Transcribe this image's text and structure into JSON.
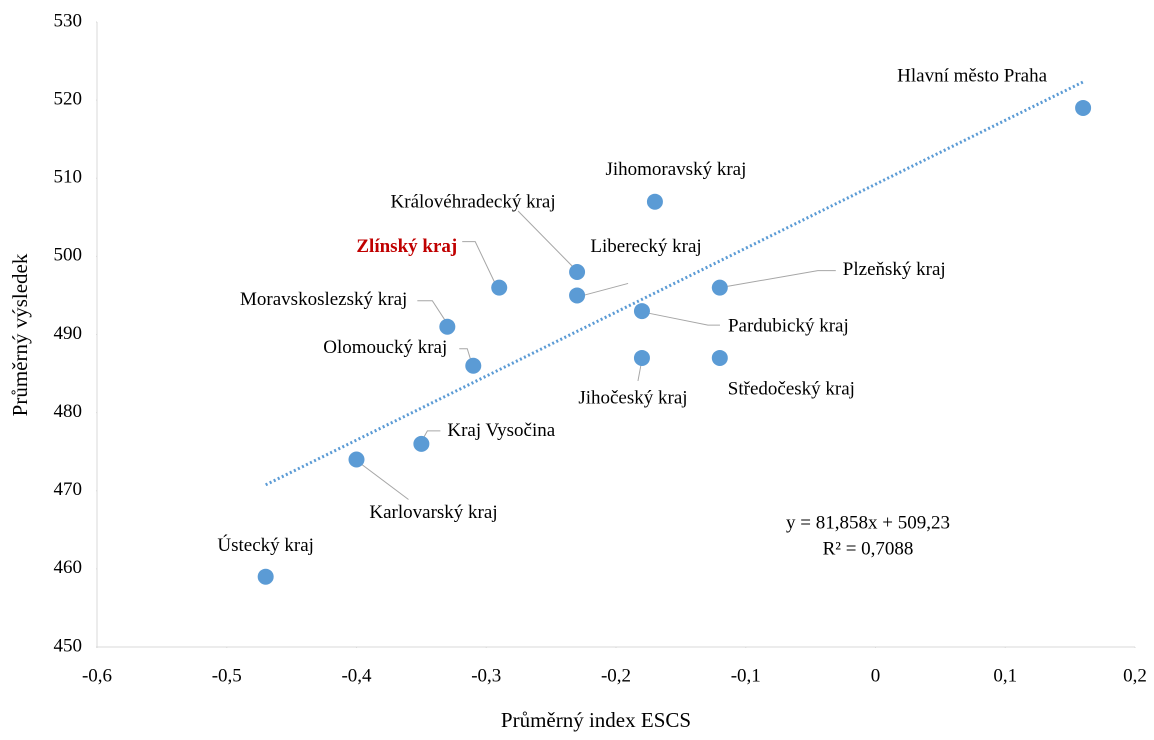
{
  "chart_data": {
    "type": "scatter",
    "xlabel": "Průměrný index ESCS",
    "ylabel": "Průměrný výsledek",
    "labels": [
      "Hlavní město Praha",
      "Jihomoravský kraj",
      "Královéhradecký kraj",
      "Liberecký kraj",
      "Zlínský kraj",
      "Moravskoslezský kraj",
      "Olomoucký kraj",
      "Kraj Vysočina",
      "Karlovarský kraj",
      "Ústecký kraj",
      "Plzeňský kraj",
      "Pardubický kraj",
      "Jihočeský kraj",
      "Středočeský kraj"
    ],
    "x": [
      0.16,
      -0.17,
      -0.23,
      -0.23,
      -0.29,
      -0.33,
      -0.31,
      -0.35,
      -0.4,
      -0.47,
      -0.12,
      -0.18,
      -0.18,
      -0.12
    ],
    "values": [
      519,
      507,
      498,
      495,
      496,
      491,
      486,
      476,
      474,
      459,
      496,
      493,
      487,
      487
    ],
    "highlight": [
      false,
      false,
      false,
      false,
      true,
      false,
      false,
      false,
      false,
      false,
      false,
      false,
      false,
      false
    ],
    "highlight_color": "#c00000",
    "color": "#5b9bd5",
    "trendline": {
      "slope": 81.858,
      "intercept": 509.23,
      "equation_label": "y = 81,858x + 509,23",
      "r2_label": "R² = 0,7088"
    },
    "xlim": [
      -0.6,
      0.2
    ],
    "xticks": [
      {
        "value": -0.6,
        "label": "-0,6"
      },
      {
        "value": -0.5,
        "label": "-0,5"
      },
      {
        "value": -0.4,
        "label": "-0,4"
      },
      {
        "value": -0.3,
        "label": "-0,3"
      },
      {
        "value": -0.2,
        "label": "-0,2"
      },
      {
        "value": -0.1,
        "label": "-0,1"
      },
      0,
      {
        "value": 0.1,
        "label": "0,1"
      },
      {
        "value": 0.2,
        "label": "0,2"
      }
    ],
    "ylim": [
      450,
      530
    ],
    "yticks": [
      450,
      460,
      470,
      480,
      490,
      500,
      510,
      520,
      530
    ],
    "grid": false
  }
}
